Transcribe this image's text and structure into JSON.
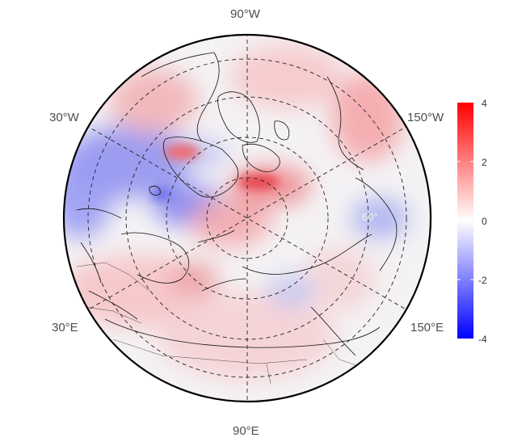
{
  "map": {
    "projection": "polar stereographic (north)",
    "longitude_labels": [
      "90°W",
      "30°W",
      "150°W",
      "30°E",
      "150°E",
      "90°E"
    ],
    "latitude_labels_visible": [
      "60°",
      "60°"
    ],
    "graticule_style": "dashed",
    "background_field": "anomaly (diverging red-white-blue)"
  },
  "colorbar": {
    "ticks": [
      "4",
      "2",
      "0",
      "-2",
      "-4"
    ],
    "range": [
      -4,
      4
    ],
    "colors": {
      "max": "#ff0000",
      "mid": "#ffffff",
      "min": "#0000ff"
    }
  }
}
